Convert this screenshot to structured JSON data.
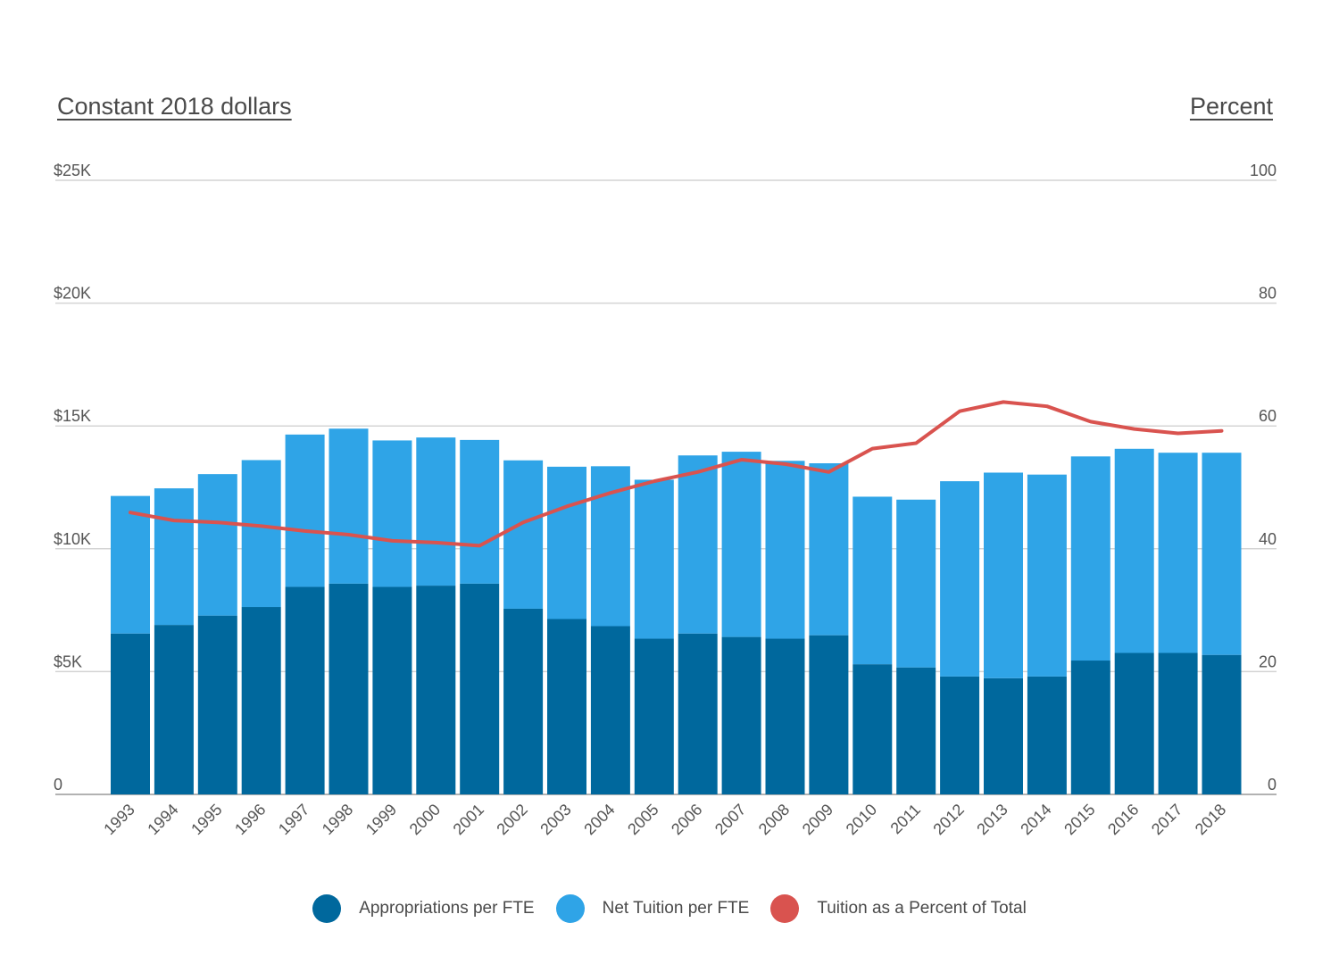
{
  "colors": {
    "appropriations": "#00689d",
    "tuition": "#2fa4e7",
    "percent": "#d9534f",
    "grid": "#d4d4d4",
    "baseline": "#999999"
  },
  "chart_data": {
    "type": "bar",
    "stacked": true,
    "left_axis_title": "Constant 2018 dollars",
    "right_axis_title": "Percent",
    "left_ylim": [
      0,
      25000
    ],
    "right_ylim": [
      0,
      100
    ],
    "left_ticks": [
      {
        "value": 0,
        "label": "0"
      },
      {
        "value": 5000,
        "label": "$5K"
      },
      {
        "value": 10000,
        "label": "$10K"
      },
      {
        "value": 15000,
        "label": "$15K"
      },
      {
        "value": 20000,
        "label": "$20K"
      },
      {
        "value": 25000,
        "label": "$25K"
      }
    ],
    "right_ticks": [
      {
        "value": 0,
        "label": "0"
      },
      {
        "value": 20,
        "label": "20"
      },
      {
        "value": 40,
        "label": "40"
      },
      {
        "value": 60,
        "label": "60"
      },
      {
        "value": 80,
        "label": "80"
      },
      {
        "value": 100,
        "label": "100"
      }
    ],
    "grid": true,
    "legend_position": "bottom",
    "categories": [
      "1993",
      "1994",
      "1995",
      "1996",
      "1997",
      "1998",
      "1999",
      "2000",
      "2001",
      "2002",
      "2003",
      "2004",
      "2005",
      "2006",
      "2007",
      "2008",
      "2009",
      "2010",
      "2011",
      "2012",
      "2013",
      "2014",
      "2015",
      "2016",
      "2017",
      "2018"
    ],
    "series": [
      {
        "name": "Appropriations per FTE",
        "type": "bar",
        "axis": "left",
        "values": [
          6550,
          6900,
          7280,
          7630,
          8450,
          8580,
          8450,
          8500,
          8580,
          7560,
          7140,
          6850,
          6340,
          6550,
          6410,
          6340,
          6480,
          5300,
          5170,
          4800,
          4730,
          4800,
          5450,
          5760,
          5760,
          5680
        ]
      },
      {
        "name": "Net Tuition per FTE",
        "type": "bar",
        "axis": "left",
        "values": [
          5600,
          5560,
          5760,
          5980,
          6200,
          6310,
          5960,
          6030,
          5850,
          6040,
          6200,
          6510,
          6470,
          7250,
          7540,
          7240,
          7000,
          6820,
          6830,
          7950,
          8370,
          8220,
          8310,
          8310,
          8150,
          8230
        ]
      },
      {
        "name": "Tuition as a Percent of Total",
        "type": "line",
        "axis": "right",
        "values": [
          45.9,
          44.6,
          44.3,
          43.7,
          42.9,
          42.3,
          41.3,
          41.0,
          40.5,
          44.3,
          46.9,
          49.1,
          51.0,
          52.5,
          54.5,
          53.8,
          52.5,
          56.3,
          57.2,
          62.4,
          63.9,
          63.2,
          60.7,
          59.5,
          58.8,
          59.2
        ]
      }
    ]
  }
}
